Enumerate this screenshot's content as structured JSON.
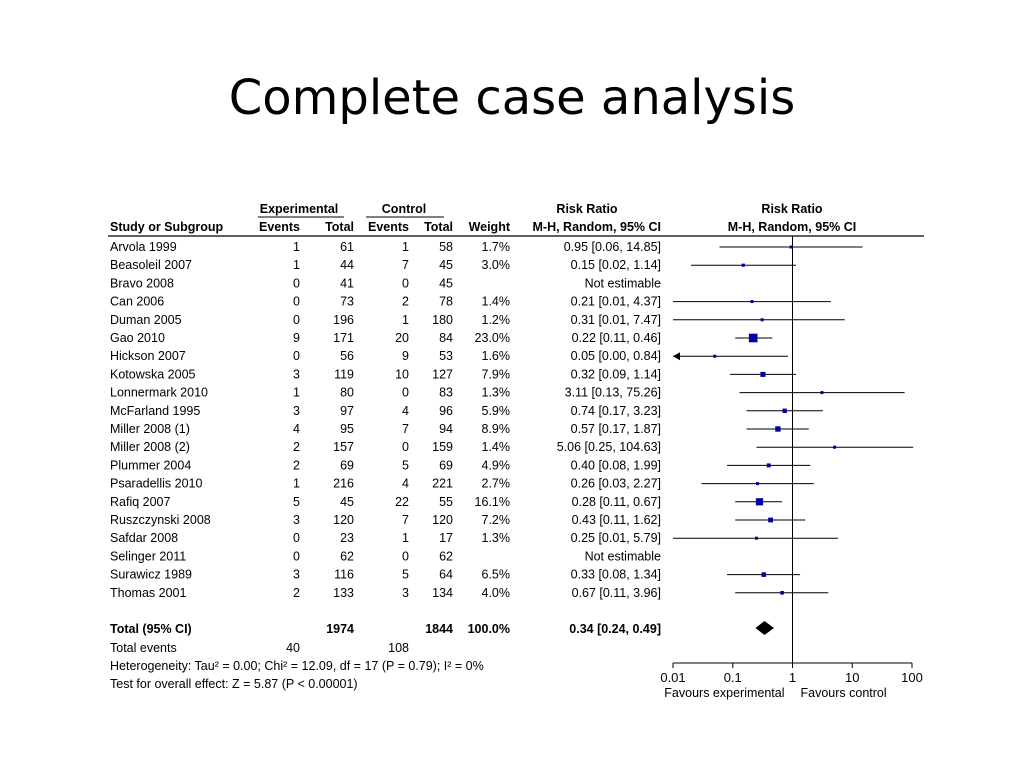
{
  "slide": {
    "title": "Complete case analysis"
  },
  "chart_data": {
    "type": "forest",
    "column_groups": {
      "experimental": "Experimental",
      "control": "Control",
      "rr_text": "Risk Ratio",
      "rr_plot": "Risk Ratio"
    },
    "columns": {
      "study": "Study or Subgroup",
      "exp_events": "Events",
      "exp_total": "Total",
      "ctl_events": "Events",
      "ctl_total": "Total",
      "weight": "Weight",
      "rr_text": "M-H, Random, 95% CI",
      "rr_plot": "M-H, Random, 95% CI"
    },
    "studies": [
      {
        "name": "Arvola 1999",
        "e_ev": "1",
        "e_tot": "61",
        "c_ev": "1",
        "c_tot": "58",
        "weight": "1.7%",
        "ci": "0.95 [0.06, 14.85]",
        "rr": 0.95,
        "lo": 0.06,
        "hi": 14.85
      },
      {
        "name": "Beasoleil 2007",
        "e_ev": "1",
        "e_tot": "44",
        "c_ev": "7",
        "c_tot": "45",
        "weight": "3.0%",
        "ci": "0.15 [0.02, 1.14]",
        "rr": 0.15,
        "lo": 0.02,
        "hi": 1.14
      },
      {
        "name": "Bravo 2008",
        "e_ev": "0",
        "e_tot": "41",
        "c_ev": "0",
        "c_tot": "45",
        "weight": "",
        "ci": "Not estimable",
        "rr": null,
        "lo": null,
        "hi": null
      },
      {
        "name": "Can 2006",
        "e_ev": "0",
        "e_tot": "73",
        "c_ev": "2",
        "c_tot": "78",
        "weight": "1.4%",
        "ci": "0.21 [0.01, 4.37]",
        "rr": 0.21,
        "lo": 0.01,
        "hi": 4.37
      },
      {
        "name": "Duman 2005",
        "e_ev": "0",
        "e_tot": "196",
        "c_ev": "1",
        "c_tot": "180",
        "weight": "1.2%",
        "ci": "0.31 [0.01, 7.47]",
        "rr": 0.31,
        "lo": 0.01,
        "hi": 7.47
      },
      {
        "name": "Gao 2010",
        "e_ev": "9",
        "e_tot": "171",
        "c_ev": "20",
        "c_tot": "84",
        "weight": "23.0%",
        "ci": "0.22 [0.11, 0.46]",
        "rr": 0.22,
        "lo": 0.11,
        "hi": 0.46
      },
      {
        "name": "Hickson 2007",
        "e_ev": "0",
        "e_tot": "56",
        "c_ev": "9",
        "c_tot": "53",
        "weight": "1.6%",
        "ci": "0.05 [0.00, 0.84]",
        "rr": 0.05,
        "lo": 0.0,
        "hi": 0.84
      },
      {
        "name": "Kotowska 2005",
        "e_ev": "3",
        "e_tot": "119",
        "c_ev": "10",
        "c_tot": "127",
        "weight": "7.9%",
        "ci": "0.32 [0.09, 1.14]",
        "rr": 0.32,
        "lo": 0.09,
        "hi": 1.14
      },
      {
        "name": "Lonnermark 2010",
        "e_ev": "1",
        "e_tot": "80",
        "c_ev": "0",
        "c_tot": "83",
        "weight": "1.3%",
        "ci": "3.11 [0.13, 75.26]",
        "rr": 3.11,
        "lo": 0.13,
        "hi": 75.26
      },
      {
        "name": "McFarland 1995",
        "e_ev": "3",
        "e_tot": "97",
        "c_ev": "4",
        "c_tot": "96",
        "weight": "5.9%",
        "ci": "0.74 [0.17, 3.23]",
        "rr": 0.74,
        "lo": 0.17,
        "hi": 3.23
      },
      {
        "name": "Miller 2008 (1)",
        "e_ev": "4",
        "e_tot": "95",
        "c_ev": "7",
        "c_tot": "94",
        "weight": "8.9%",
        "ci": "0.57 [0.17, 1.87]",
        "rr": 0.57,
        "lo": 0.17,
        "hi": 1.87
      },
      {
        "name": "Miller 2008 (2)",
        "e_ev": "2",
        "e_tot": "157",
        "c_ev": "0",
        "c_tot": "159",
        "weight": "1.4%",
        "ci": "5.06 [0.25, 104.63]",
        "rr": 5.06,
        "lo": 0.25,
        "hi": 104.63
      },
      {
        "name": "Plummer 2004",
        "e_ev": "2",
        "e_tot": "69",
        "c_ev": "5",
        "c_tot": "69",
        "weight": "4.9%",
        "ci": "0.40 [0.08, 1.99]",
        "rr": 0.4,
        "lo": 0.08,
        "hi": 1.99
      },
      {
        "name": "Psaradellis 2010",
        "e_ev": "1",
        "e_tot": "216",
        "c_ev": "4",
        "c_tot": "221",
        "weight": "2.7%",
        "ci": "0.26 [0.03, 2.27]",
        "rr": 0.26,
        "lo": 0.03,
        "hi": 2.27
      },
      {
        "name": "Rafiq 2007",
        "e_ev": "5",
        "e_tot": "45",
        "c_ev": "22",
        "c_tot": "55",
        "weight": "16.1%",
        "ci": "0.28 [0.11, 0.67]",
        "rr": 0.28,
        "lo": 0.11,
        "hi": 0.67
      },
      {
        "name": "Ruszczynski 2008",
        "e_ev": "3",
        "e_tot": "120",
        "c_ev": "7",
        "c_tot": "120",
        "weight": "7.2%",
        "ci": "0.43 [0.11, 1.62]",
        "rr": 0.43,
        "lo": 0.11,
        "hi": 1.62
      },
      {
        "name": "Safdar 2008",
        "e_ev": "0",
        "e_tot": "23",
        "c_ev": "1",
        "c_tot": "17",
        "weight": "1.3%",
        "ci": "0.25 [0.01, 5.79]",
        "rr": 0.25,
        "lo": 0.01,
        "hi": 5.79
      },
      {
        "name": "Selinger 2011",
        "e_ev": "0",
        "e_tot": "62",
        "c_ev": "0",
        "c_tot": "62",
        "weight": "",
        "ci": "Not estimable",
        "rr": null,
        "lo": null,
        "hi": null
      },
      {
        "name": "Surawicz 1989",
        "e_ev": "3",
        "e_tot": "116",
        "c_ev": "5",
        "c_tot": "64",
        "weight": "6.5%",
        "ci": "0.33 [0.08, 1.34]",
        "rr": 0.33,
        "lo": 0.08,
        "hi": 1.34
      },
      {
        "name": "Thomas 2001",
        "e_ev": "2",
        "e_tot": "133",
        "c_ev": "3",
        "c_tot": "134",
        "weight": "4.0%",
        "ci": "0.67 [0.11, 3.96]",
        "rr": 0.67,
        "lo": 0.11,
        "hi": 3.96
      }
    ],
    "total": {
      "name": "Total (95% CI)",
      "e_tot": "1974",
      "c_tot": "1844",
      "weight": "100.0%",
      "ci": "0.34 [0.24, 0.49]",
      "rr": 0.34,
      "lo": 0.24,
      "hi": 0.49
    },
    "total_events": {
      "label": "Total events",
      "e": "40",
      "c": "108"
    },
    "heterogeneity": "Heterogeneity: Tau² = 0.00; Chi² = 12.09, df = 17 (P = 0.79); I² = 0%",
    "overall_effect": "Test for overall effect: Z = 5.87 (P < 0.00001)",
    "axis": {
      "scale": "log",
      "ticks": [
        0.01,
        0.1,
        1,
        10,
        100
      ],
      "tick_labels": [
        "0.01",
        "0.1",
        "1",
        "10",
        "100"
      ],
      "xlim": [
        0.01,
        100
      ],
      "favours_left": "Favours experimental",
      "favours_right": "Favours control"
    },
    "colors": {
      "marker": "#0000a0",
      "line": "#000000",
      "diamond": "#000000"
    }
  }
}
